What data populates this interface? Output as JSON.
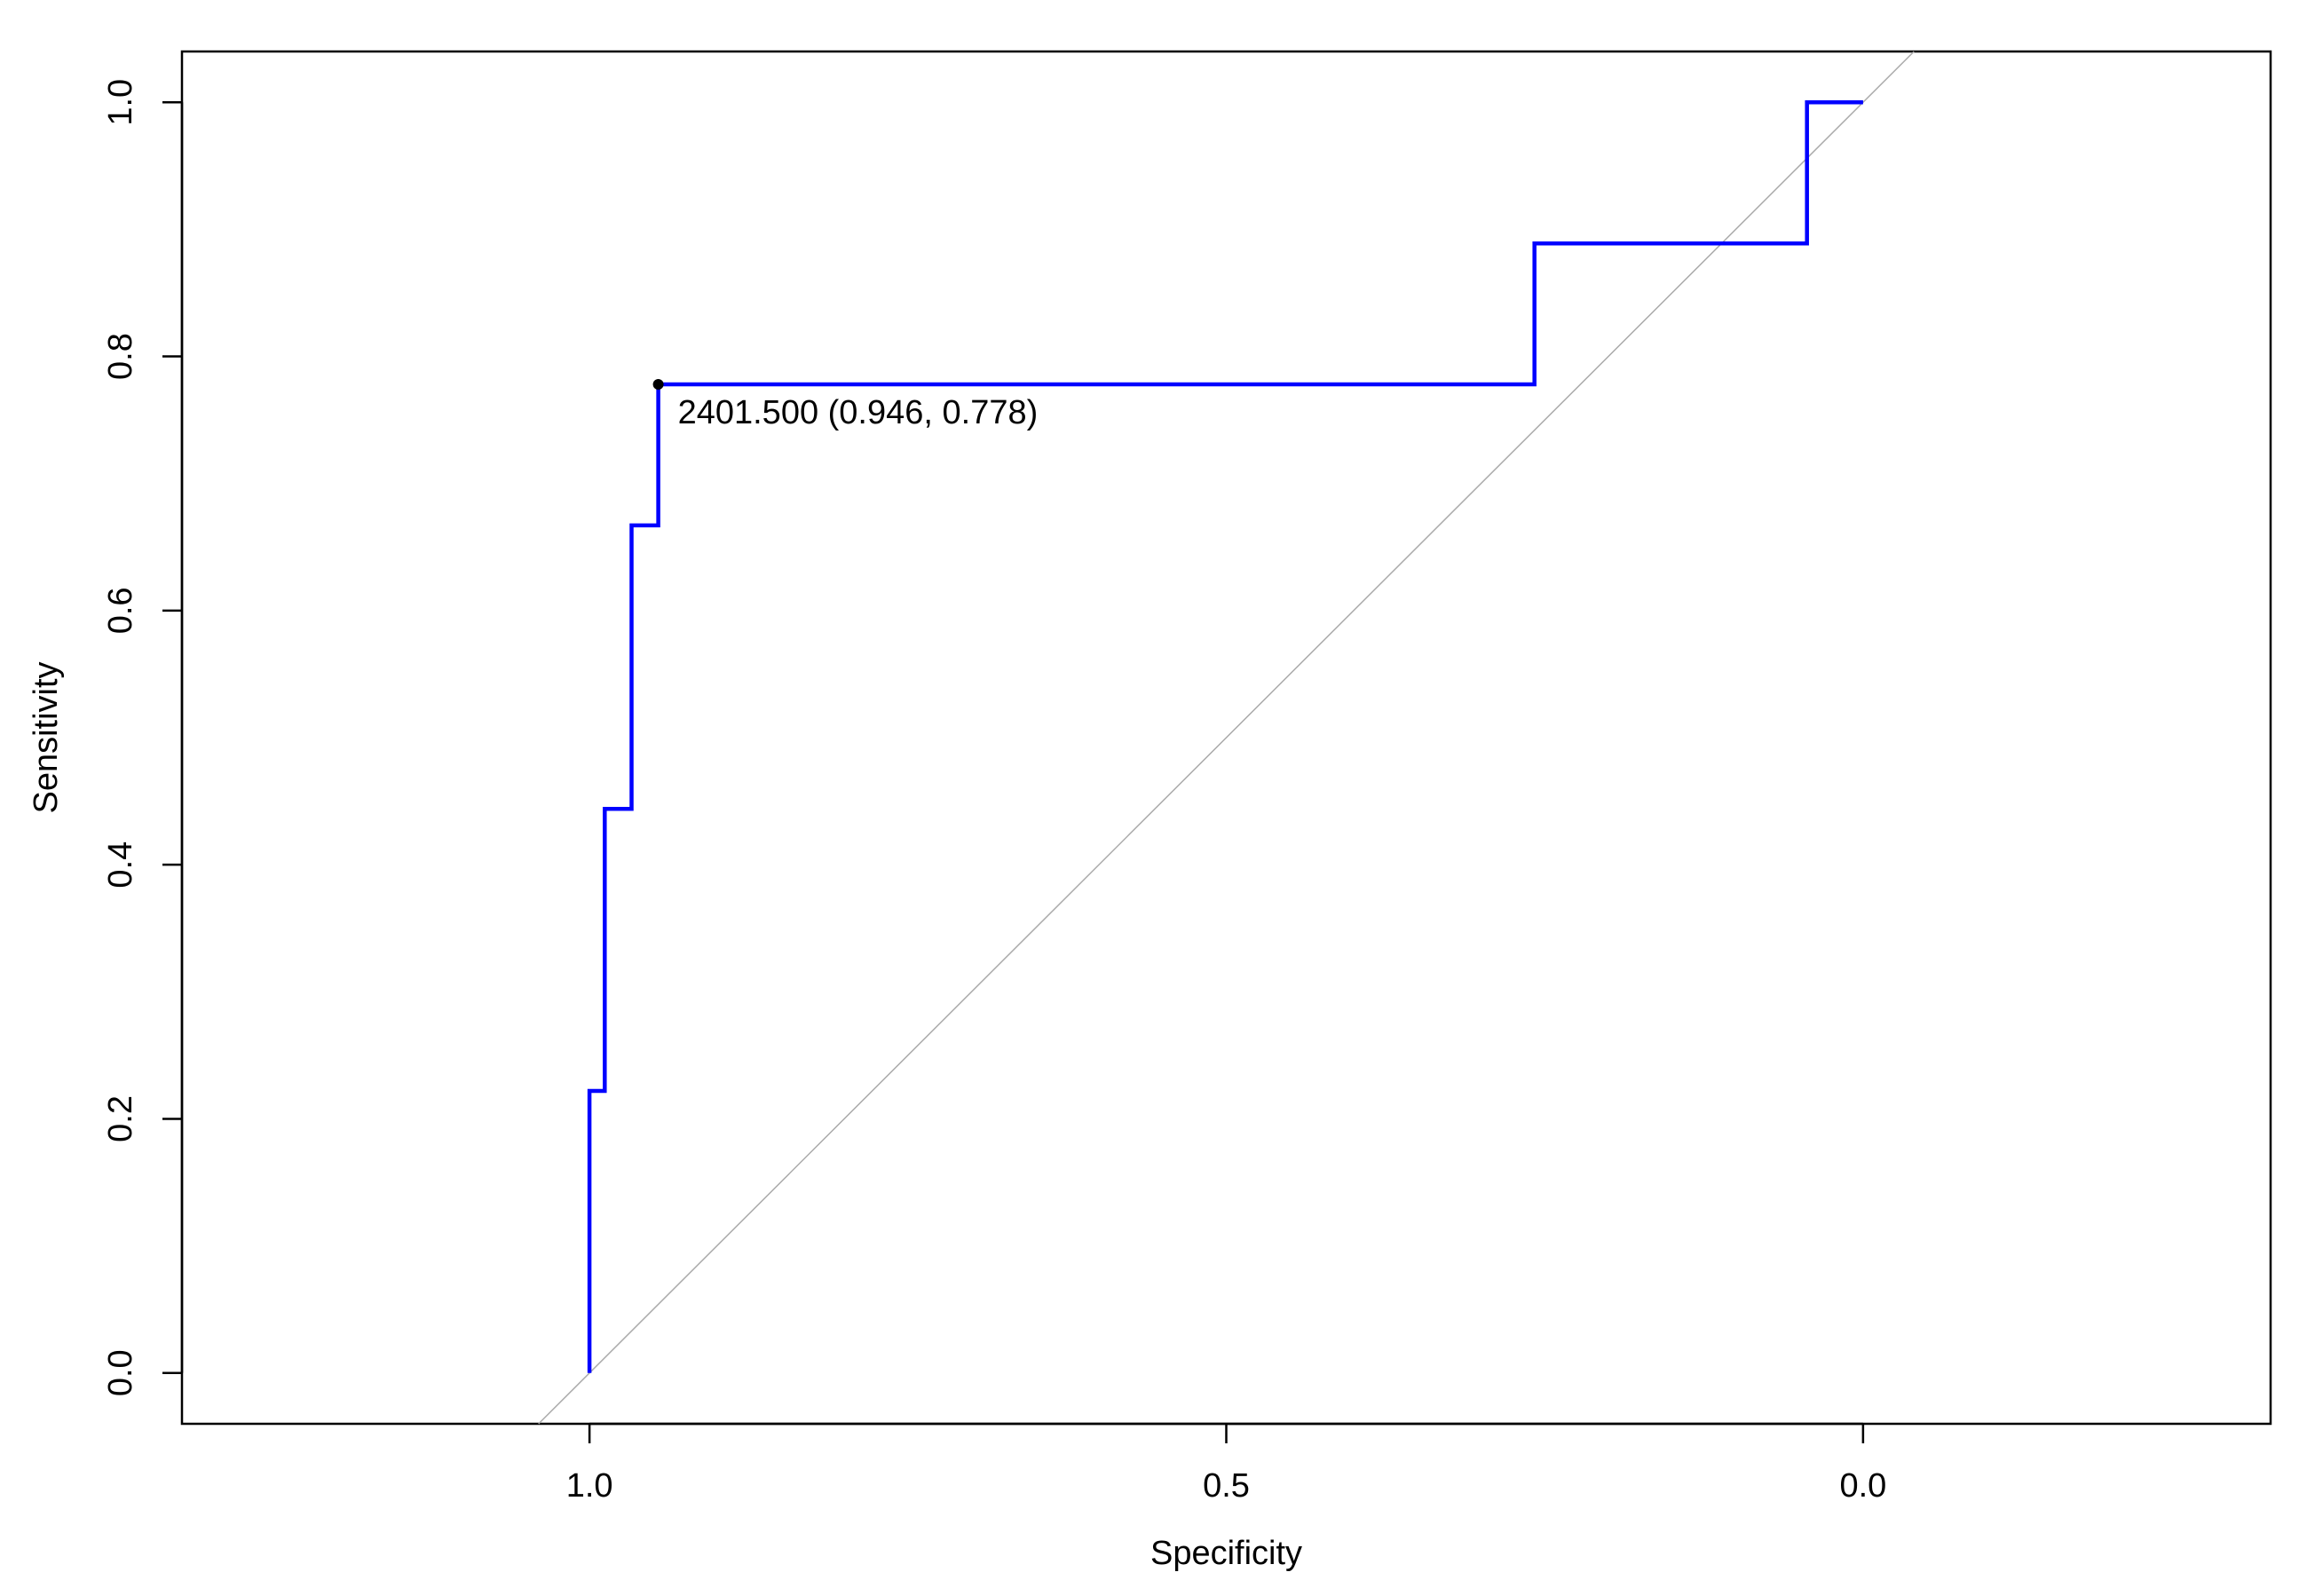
{
  "chart_data": {
    "type": "line",
    "title": "",
    "xlabel": "Specificity",
    "ylabel": "Sensitivity",
    "x_reversed": true,
    "xlim": [
      1.32,
      -0.32
    ],
    "ylim": [
      -0.04,
      1.04
    ],
    "xticks": [
      {
        "value": 1.0,
        "label": "1.0"
      },
      {
        "value": 0.5,
        "label": "0.5"
      },
      {
        "value": 0.0,
        "label": "0.0"
      }
    ],
    "yticks": [
      {
        "value": 0.0,
        "label": "0.0"
      },
      {
        "value": 0.2,
        "label": "0.2"
      },
      {
        "value": 0.4,
        "label": "0.4"
      },
      {
        "value": 0.6,
        "label": "0.6"
      },
      {
        "value": 0.8,
        "label": "0.8"
      },
      {
        "value": 1.0,
        "label": "1.0"
      }
    ],
    "grid": false,
    "series": [
      {
        "color": "#0000ff",
        "specificity": [
          1.0,
          1.0,
          0.988,
          0.988,
          0.967,
          0.967,
          0.946,
          0.946,
          0.258,
          0.258,
          0.044,
          0.044,
          0.0
        ],
        "sensitivity": [
          0.0,
          0.222,
          0.222,
          0.444,
          0.444,
          0.667,
          0.667,
          0.778,
          0.778,
          0.889,
          0.889,
          1.0,
          1.0
        ]
      }
    ],
    "reference_line": {
      "from": [
        1,
        0
      ],
      "to": [
        0,
        1
      ],
      "color": "#aaaaaa"
    },
    "annotation": {
      "specificity": 0.946,
      "sensitivity": 0.778,
      "text": "2401.500 (0.946, 0.778)"
    }
  }
}
